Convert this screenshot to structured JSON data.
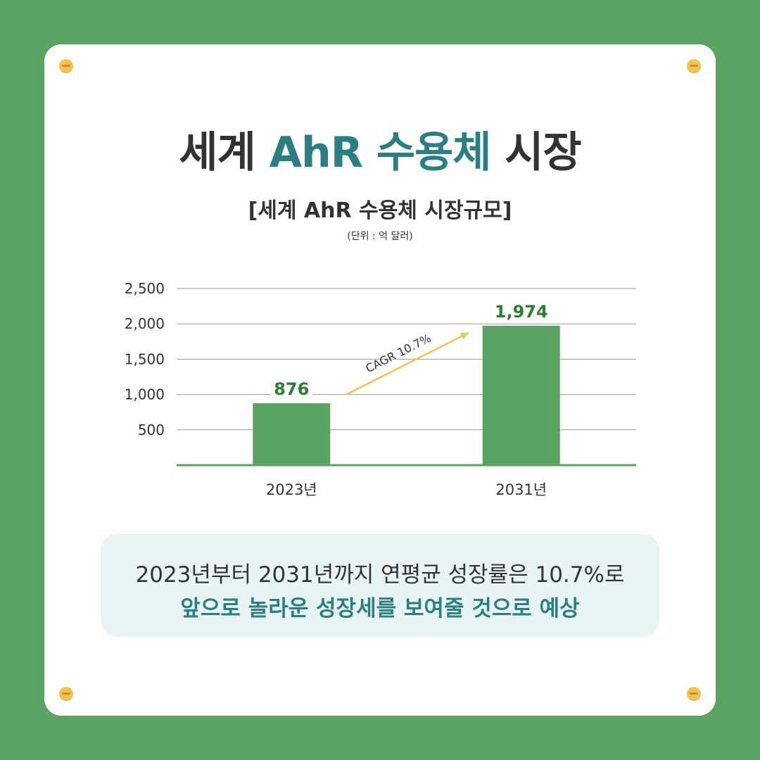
{
  "header": {
    "title_pre": "세계 ",
    "title_highlight": "AhR 수용체",
    "title_post": " 시장",
    "subtitle": "[세계 AhR 수용체 시장규모]",
    "unit": "(단위 : 억 달러)"
  },
  "chart_data": {
    "type": "bar",
    "categories": [
      "2023년",
      "2031년"
    ],
    "values": [
      876,
      1974
    ],
    "value_labels": [
      "876",
      "1,974"
    ],
    "y_ticks": [
      500,
      1000,
      1500,
      2000,
      2500
    ],
    "y_tick_labels": [
      "500",
      "1,000",
      "1,500",
      "2,000",
      "2,500"
    ],
    "ylim": [
      0,
      2500
    ],
    "grid": true,
    "annotation": "CAGR 10.7%",
    "bar_color": "#5ba363",
    "label_color": "#2e7d32",
    "arrow_color": "#f6c24e"
  },
  "note": {
    "line1": "2023년부터 2031년까지 연평균 성장률은 10.7%로",
    "line2": "앞으로 놀라운 성장세를 보여줄 것으로 예상"
  }
}
